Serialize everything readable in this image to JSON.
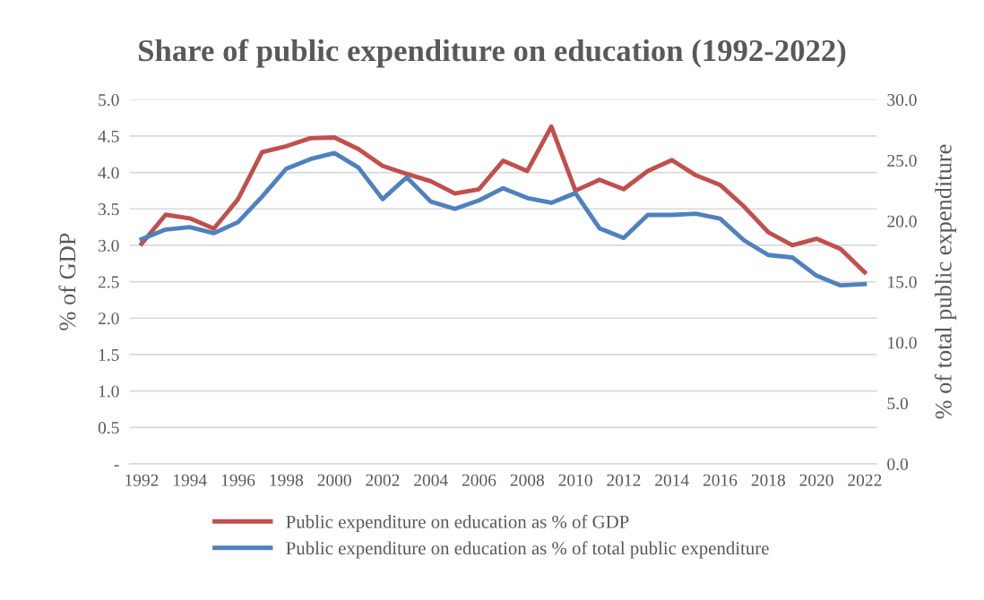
{
  "chart_data": {
    "type": "line",
    "title": "Share of public expenditure on education (1992-2022)",
    "ylabel": "% of GDP",
    "y2label": "% of total public expenditure",
    "categories": [
      "1992",
      null,
      "1994",
      null,
      "1996",
      null,
      "1998",
      null,
      "2000",
      null,
      "2002",
      null,
      "2004",
      null,
      "2006",
      null,
      "2008",
      null,
      "2010",
      null,
      "2012",
      null,
      "2014",
      null,
      "2016",
      null,
      "2018",
      null,
      "2020",
      null,
      "2022"
    ],
    "series": [
      {
        "name": "Public expenditure on education as % of GDP",
        "color": "#c0504d",
        "values": [
          3.02,
          3.42,
          3.37,
          3.23,
          3.63,
          4.28,
          4.36,
          4.47,
          4.48,
          4.32,
          4.09,
          3.98,
          3.88,
          3.71,
          3.77,
          4.16,
          4.02,
          4.63,
          3.75,
          3.9,
          3.77,
          4.02,
          4.17,
          3.96,
          3.83,
          3.53,
          3.18,
          3.0,
          3.09,
          2.95,
          2.63
        ]
      },
      {
        "name": "Public expenditure on education as % of total public expenditure",
        "color": "#4f81bd",
        "axis": "y2",
        "values": [
          18.5,
          19.3,
          19.5,
          19.0,
          19.9,
          22.0,
          24.3,
          25.1,
          25.6,
          24.4,
          21.8,
          23.6,
          21.6,
          21.0,
          21.7,
          22.7,
          21.9,
          21.5,
          22.3,
          19.4,
          18.6,
          20.5,
          20.5,
          20.6,
          20.2,
          18.4,
          17.2,
          17.0,
          15.5,
          14.7,
          14.8
        ]
      }
    ],
    "ylim": [
      0,
      5
    ],
    "yticks": [
      {
        "value": 0,
        "label": "-"
      },
      {
        "value": 0.5,
        "label": "0.5"
      },
      {
        "value": 1,
        "label": "1.0"
      },
      {
        "value": 1.5,
        "label": "1.5"
      },
      {
        "value": 2,
        "label": "2.0"
      },
      {
        "value": 2.5,
        "label": "2.5"
      },
      {
        "value": 3,
        "label": "3.0"
      },
      {
        "value": 3.5,
        "label": "3.5"
      },
      {
        "value": 4,
        "label": "4.0"
      },
      {
        "value": 4.5,
        "label": "4.5"
      },
      {
        "value": 5,
        "label": "5.0"
      }
    ],
    "y2lim": [
      0,
      30
    ],
    "y2ticks": [
      {
        "value": 0,
        "label": "0.0"
      },
      {
        "value": 5,
        "label": "5.0"
      },
      {
        "value": 10,
        "label": "10.0"
      },
      {
        "value": 15,
        "label": "15.0"
      },
      {
        "value": 20,
        "label": "20.0"
      },
      {
        "value": 25,
        "label": "25.0"
      },
      {
        "value": 30,
        "label": "30.0"
      }
    ],
    "grid": "y",
    "legend": "bottom",
    "marker": "none",
    "line_style": "solid"
  }
}
